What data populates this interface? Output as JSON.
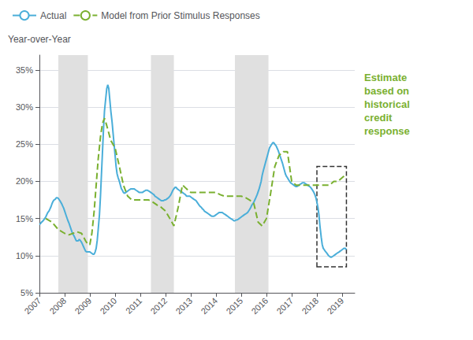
{
  "chart_data": {
    "type": "line",
    "ylabel": "Year-over-Year",
    "annotation": "Estimate\nbased on\nhistorical\ncredit\nresponse",
    "grid": true,
    "legend": "upper left",
    "xlim": [
      2007.0,
      2019.5
    ],
    "xticks": [
      2007,
      2008,
      2009,
      2010,
      2011,
      2012,
      2013,
      2014,
      2015,
      2016,
      2017,
      2018,
      2019
    ],
    "ylim": [
      5,
      37
    ],
    "yticks": [
      {
        "value": 5,
        "label": "5%"
      },
      {
        "value": 10,
        "label": "10%"
      },
      {
        "value": 15,
        "label": "15%"
      },
      {
        "value": 20,
        "label": "20%"
      },
      {
        "value": 25,
        "label": "25%"
      },
      {
        "value": 30,
        "label": "30%"
      },
      {
        "value": 35,
        "label": "35%"
      }
    ],
    "shaded_regions": [
      [
        2007.75,
        2008.92
      ],
      [
        2011.42,
        2012.33
      ],
      [
        2014.75,
        2016.08
      ]
    ],
    "dashed_box": {
      "x": [
        2018.0,
        2019.17
      ],
      "y": [
        8.5,
        22.0
      ]
    },
    "series": [
      {
        "name": "Actual",
        "color": "#4aaed9",
        "line_style": "solid",
        "x": [
          2007.0,
          2007.04,
          2007.08,
          2007.12,
          2007.17,
          2007.21,
          2007.25,
          2007.29,
          2007.33,
          2007.38,
          2007.42,
          2007.46,
          2007.5,
          2007.54,
          2007.58,
          2007.63,
          2007.67,
          2007.71,
          2007.75,
          2007.79,
          2007.83,
          2007.88,
          2007.92,
          2007.96,
          2008.0,
          2008.04,
          2008.08,
          2008.12,
          2008.17,
          2008.21,
          2008.25,
          2008.29,
          2008.33,
          2008.38,
          2008.42,
          2008.46,
          2008.5,
          2008.54,
          2008.58,
          2008.63,
          2008.67,
          2008.71,
          2008.75,
          2008.79,
          2008.83,
          2008.88,
          2008.92,
          2008.96,
          2009.0,
          2009.04,
          2009.08,
          2009.12,
          2009.17,
          2009.21,
          2009.25,
          2009.29,
          2009.33,
          2009.38,
          2009.42,
          2009.46,
          2009.5,
          2009.54,
          2009.58,
          2009.63,
          2009.67,
          2009.71,
          2009.75,
          2009.79,
          2009.83,
          2009.88,
          2009.92,
          2009.96,
          2010.0,
          2010.04,
          2010.08,
          2010.12,
          2010.17,
          2010.21,
          2010.25,
          2010.29,
          2010.33,
          2010.38,
          2010.42,
          2010.46,
          2010.5,
          2010.54,
          2010.58,
          2010.63,
          2010.67,
          2010.71,
          2010.75,
          2010.79,
          2010.83,
          2010.88,
          2010.92,
          2010.96,
          2011.0,
          2011.04,
          2011.08,
          2011.12,
          2011.17,
          2011.21,
          2011.25,
          2011.29,
          2011.33,
          2011.38,
          2011.42,
          2011.46,
          2011.5,
          2011.54,
          2011.58,
          2011.63,
          2011.67,
          2011.71,
          2011.75,
          2011.79,
          2011.83,
          2011.88,
          2011.92,
          2011.96,
          2012.0,
          2012.04,
          2012.08,
          2012.12,
          2012.17,
          2012.21,
          2012.25,
          2012.29,
          2012.33,
          2012.38,
          2012.42,
          2012.46,
          2012.5,
          2012.54,
          2012.58,
          2012.63,
          2012.67,
          2012.71,
          2012.75,
          2012.79,
          2012.83,
          2012.88,
          2012.92,
          2012.96,
          2013.0,
          2013.04,
          2013.08,
          2013.12,
          2013.17,
          2013.21,
          2013.25,
          2013.29,
          2013.33,
          2013.38,
          2013.42,
          2013.46,
          2013.5,
          2013.54,
          2013.58,
          2013.63,
          2013.67,
          2013.71,
          2013.75,
          2013.79,
          2013.83,
          2013.88,
          2013.92,
          2013.96,
          2014.0,
          2014.04,
          2014.08,
          2014.12,
          2014.17,
          2014.21,
          2014.25,
          2014.29,
          2014.33,
          2014.38,
          2014.42,
          2014.46,
          2014.5,
          2014.54,
          2014.58,
          2014.63,
          2014.67,
          2014.71,
          2014.75,
          2014.79,
          2014.83,
          2014.88,
          2014.92,
          2014.96,
          2015.0,
          2015.04,
          2015.08,
          2015.12,
          2015.17,
          2015.21,
          2015.25,
          2015.29,
          2015.33,
          2015.38,
          2015.42,
          2015.46,
          2015.5,
          2015.54,
          2015.58,
          2015.63,
          2015.67,
          2015.71,
          2015.75,
          2015.79,
          2015.83,
          2015.88,
          2015.92,
          2015.96,
          2016.0,
          2016.04,
          2016.08,
          2016.12,
          2016.17,
          2016.21,
          2016.25,
          2016.29,
          2016.33,
          2016.38,
          2016.42,
          2016.46,
          2016.5,
          2016.54,
          2016.58,
          2016.63,
          2016.67,
          2016.71,
          2016.75,
          2016.79,
          2016.83,
          2016.88,
          2016.92,
          2016.96,
          2017.0,
          2017.04,
          2017.08,
          2017.12,
          2017.17,
          2017.21,
          2017.25,
          2017.29,
          2017.33,
          2017.38,
          2017.42,
          2017.46,
          2017.5,
          2017.54,
          2017.58,
          2017.63,
          2017.67,
          2017.71,
          2017.75,
          2017.79,
          2017.83,
          2017.88,
          2017.92,
          2017.96,
          2018.0,
          2018.04,
          2018.08,
          2018.12,
          2018.17,
          2018.21,
          2018.25,
          2018.29,
          2018.33,
          2018.38,
          2018.42,
          2018.46,
          2018.5,
          2018.54,
          2018.58,
          2018.63,
          2018.67,
          2018.71,
          2018.75,
          2018.79,
          2018.83,
          2018.88,
          2018.92,
          2018.96,
          2019.0,
          2019.04,
          2019.08,
          2019.12,
          2019.17
        ],
        "values": [
          14.2,
          14.3,
          14.5,
          14.6,
          14.8,
          15.0,
          15.2,
          15.5,
          15.8,
          16.0,
          16.3,
          16.6,
          17.0,
          17.3,
          17.5,
          17.6,
          17.8,
          17.8,
          17.7,
          17.5,
          17.3,
          17.0,
          16.7,
          16.4,
          16.0,
          15.6,
          15.2,
          14.8,
          14.4,
          14.0,
          13.6,
          13.2,
          12.9,
          12.6,
          12.3,
          12.0,
          12.0,
          12.0,
          12.2,
          12.0,
          11.8,
          11.5,
          11.2,
          10.9,
          10.6,
          10.5,
          10.5,
          10.5,
          10.5,
          10.4,
          10.3,
          10.2,
          10.2,
          10.5,
          11.0,
          12.0,
          13.5,
          15.5,
          18.0,
          21.0,
          24.0,
          27.0,
          29.5,
          31.2,
          32.5,
          33.0,
          32.5,
          31.0,
          29.5,
          28.0,
          26.5,
          25.0,
          23.5,
          22.0,
          21.0,
          20.5,
          20.0,
          19.5,
          19.0,
          18.8,
          18.5,
          18.4,
          18.5,
          18.6,
          18.7,
          18.8,
          18.9,
          19.0,
          19.0,
          19.0,
          19.0,
          18.9,
          18.8,
          18.7,
          18.6,
          18.5,
          18.5,
          18.5,
          18.5,
          18.6,
          18.7,
          18.8,
          18.8,
          18.8,
          18.7,
          18.6,
          18.5,
          18.4,
          18.3,
          18.2,
          18.0,
          17.9,
          17.8,
          17.7,
          17.6,
          17.5,
          17.4,
          17.4,
          17.4,
          17.5,
          17.5,
          17.6,
          17.7,
          17.8,
          18.0,
          18.2,
          18.5,
          18.8,
          19.0,
          19.2,
          19.2,
          19.0,
          18.9,
          18.8,
          18.7,
          18.6,
          18.5,
          18.4,
          18.3,
          18.2,
          18.0,
          18.0,
          18.0,
          18.0,
          17.9,
          17.8,
          17.7,
          17.6,
          17.5,
          17.4,
          17.2,
          17.0,
          16.8,
          16.6,
          16.5,
          16.3,
          16.2,
          16.0,
          15.9,
          15.8,
          15.7,
          15.6,
          15.5,
          15.4,
          15.3,
          15.3,
          15.3,
          15.4,
          15.5,
          15.6,
          15.7,
          15.8,
          15.8,
          15.8,
          15.8,
          15.7,
          15.6,
          15.5,
          15.4,
          15.3,
          15.2,
          15.1,
          15.0,
          14.9,
          14.8,
          14.7,
          14.7,
          14.8,
          14.8,
          14.9,
          15.0,
          15.1,
          15.2,
          15.3,
          15.4,
          15.5,
          15.6,
          15.7,
          15.8,
          16.0,
          16.2,
          16.5,
          16.8,
          17.0,
          17.2,
          17.5,
          17.8,
          18.2,
          18.6,
          19.0,
          19.5,
          20.0,
          20.8,
          21.5,
          22.0,
          22.5,
          23.0,
          23.5,
          24.0,
          24.5,
          24.8,
          25.0,
          25.2,
          25.2,
          25.0,
          24.8,
          24.5,
          24.2,
          23.8,
          23.4,
          23.0,
          22.5,
          22.0,
          21.5,
          21.0,
          20.7,
          20.5,
          20.2,
          20.0,
          19.8,
          19.7,
          19.6,
          19.5,
          19.4,
          19.3,
          19.3,
          19.4,
          19.5,
          19.6,
          19.7,
          19.8,
          19.8,
          19.8,
          19.7,
          19.6,
          19.5,
          19.4,
          19.3,
          19.2,
          19.0,
          18.8,
          18.5,
          18.2,
          17.8,
          17.2,
          16.5,
          15.5,
          14.0,
          12.5,
          11.5,
          11.0,
          10.8,
          10.6,
          10.4,
          10.2,
          10.0,
          9.9,
          9.8,
          9.8,
          9.9,
          10.0,
          10.1,
          10.2,
          10.3,
          10.4,
          10.5,
          10.6,
          10.7,
          10.8,
          10.9,
          11.0,
          11.0,
          10.8
        ]
      },
      {
        "name": "Model from Prior Stimulus Responses",
        "color": "#7ab030",
        "line_style": "dashed",
        "x": [
          2007.25,
          2007.5,
          2007.75,
          2008.0,
          2008.17,
          2008.33,
          2008.5,
          2008.67,
          2008.75,
          2008.83,
          2008.92,
          2009.0,
          2009.08,
          2009.17,
          2009.25,
          2009.33,
          2009.42,
          2009.5,
          2009.58,
          2009.67,
          2009.75,
          2009.83,
          2010.0,
          2010.17,
          2010.33,
          2010.5,
          2010.67,
          2010.83,
          2011.0,
          2011.17,
          2011.33,
          2011.5,
          2011.67,
          2011.83,
          2012.0,
          2012.17,
          2012.33,
          2012.5,
          2012.67,
          2012.83,
          2013.0,
          2013.17,
          2013.33,
          2013.5,
          2013.67,
          2013.83,
          2014.0,
          2014.17,
          2014.33,
          2014.5,
          2014.67,
          2014.83,
          2015.0,
          2015.17,
          2015.33,
          2015.5,
          2015.67,
          2015.83,
          2016.0,
          2016.17,
          2016.33,
          2016.5,
          2016.67,
          2016.83,
          2017.0,
          2017.17,
          2017.33,
          2017.5,
          2017.67,
          2017.83,
          2018.0,
          2018.17,
          2018.33,
          2018.5,
          2018.67,
          2018.83,
          2019.0,
          2019.17
        ],
        "values": [
          15.0,
          14.5,
          13.5,
          13.0,
          12.8,
          13.0,
          13.2,
          13.0,
          12.5,
          12.0,
          11.5,
          11.5,
          13.0,
          16.0,
          19.5,
          23.0,
          26.0,
          27.8,
          28.5,
          27.5,
          26.5,
          25.5,
          24.5,
          22.0,
          19.5,
          18.0,
          17.5,
          17.5,
          17.5,
          17.5,
          17.5,
          17.2,
          16.8,
          16.5,
          16.0,
          15.0,
          14.0,
          16.5,
          19.5,
          19.0,
          18.5,
          18.5,
          18.5,
          18.5,
          18.5,
          18.5,
          18.5,
          18.2,
          18.0,
          18.0,
          18.0,
          18.0,
          18.0,
          17.8,
          17.5,
          17.0,
          14.5,
          14.0,
          15.0,
          18.5,
          22.0,
          23.5,
          24.0,
          24.0,
          20.0,
          19.5,
          19.5,
          19.5,
          19.5,
          19.5,
          19.5,
          19.5,
          19.5,
          19.5,
          20.0,
          20.0,
          20.5,
          21.0
        ]
      }
    ]
  }
}
